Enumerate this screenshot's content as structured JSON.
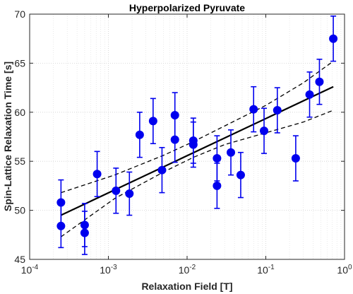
{
  "chart_data": {
    "type": "scatter",
    "title": "Hyperpolarized Pyruvate",
    "xlabel": "Relaxation Field [T]",
    "ylabel": "Spin-Lattice Relaxation Time [s]",
    "xscale": "log",
    "xlim": [
      0.0001,
      1
    ],
    "ylim": [
      45,
      70
    ],
    "grid": true,
    "x_tick_labels": [
      "10^-4",
      "10^-3",
      "10^-2",
      "10^-1",
      "10^0"
    ],
    "y_ticks": [
      45,
      50,
      55,
      60,
      65,
      70
    ],
    "colors": {
      "points": "#0000ee",
      "fit": "#000000",
      "ci": "#000000"
    },
    "points": [
      {
        "x": 0.00025,
        "y": 50.8,
        "err": 2.3
      },
      {
        "x": 0.00025,
        "y": 48.4,
        "err": 2.2
      },
      {
        "x": 0.0005,
        "y": 48.5,
        "err": 2.2
      },
      {
        "x": 0.0005,
        "y": 47.7,
        "err": 2.2
      },
      {
        "x": 0.00072,
        "y": 53.7,
        "err": 2.3
      },
      {
        "x": 0.00125,
        "y": 52.0,
        "err": 2.3
      },
      {
        "x": 0.00185,
        "y": 51.7,
        "err": 2.2
      },
      {
        "x": 0.0025,
        "y": 57.7,
        "err": 2.3
      },
      {
        "x": 0.0037,
        "y": 59.1,
        "err": 2.3
      },
      {
        "x": 0.0048,
        "y": 54.1,
        "err": 2.3
      },
      {
        "x": 0.007,
        "y": 59.7,
        "err": 2.3
      },
      {
        "x": 0.007,
        "y": 57.2,
        "err": 2.3
      },
      {
        "x": 0.012,
        "y": 57.1,
        "err": 2.3
      },
      {
        "x": 0.012,
        "y": 56.7,
        "err": 2.3
      },
      {
        "x": 0.024,
        "y": 55.3,
        "err": 2.3
      },
      {
        "x": 0.024,
        "y": 52.5,
        "err": 2.3
      },
      {
        "x": 0.036,
        "y": 55.9,
        "err": 2.3
      },
      {
        "x": 0.048,
        "y": 53.6,
        "err": 2.3
      },
      {
        "x": 0.07,
        "y": 60.3,
        "err": 2.3
      },
      {
        "x": 0.095,
        "y": 58.1,
        "err": 2.3
      },
      {
        "x": 0.14,
        "y": 60.2,
        "err": 2.3
      },
      {
        "x": 0.24,
        "y": 55.3,
        "err": 2.3
      },
      {
        "x": 0.36,
        "y": 61.8,
        "err": 2.3
      },
      {
        "x": 0.48,
        "y": 63.1,
        "err": 2.3
      },
      {
        "x": 0.72,
        "y": 67.5,
        "err": 2.3
      }
    ],
    "fit_line": {
      "x": [
        0.00025,
        0.72
      ],
      "y": [
        49.5,
        62.6
      ]
    },
    "ci_upper": {
      "x": [
        0.00025,
        0.0012,
        0.005,
        0.012,
        0.03,
        0.1,
        0.3,
        0.72
      ],
      "y": [
        51.8,
        53.6,
        55.6,
        57.0,
        58.6,
        60.7,
        63.0,
        65.2
      ]
    },
    "ci_lower": {
      "x": [
        0.00025,
        0.0012,
        0.005,
        0.012,
        0.03,
        0.1,
        0.3,
        0.72
      ],
      "y": [
        47.3,
        51.2,
        53.9,
        55.4,
        56.7,
        57.9,
        59.0,
        60.2
      ]
    }
  }
}
